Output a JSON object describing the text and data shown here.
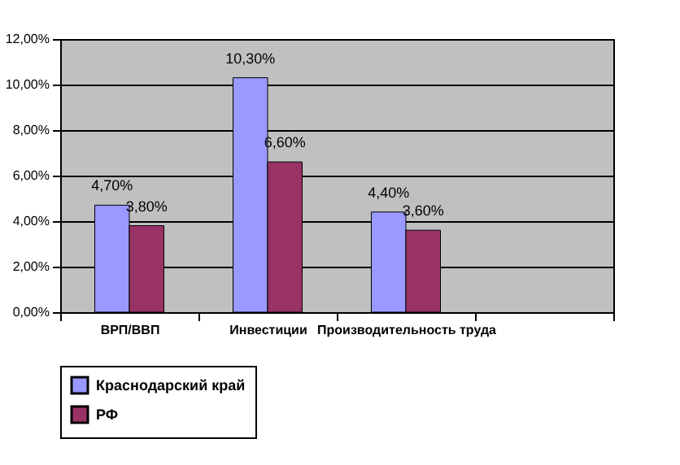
{
  "chart_data": {
    "type": "bar",
    "categories": [
      "ВРП/ВВП",
      "Инвестиции",
      "Производительность труда",
      null
    ],
    "series": [
      {
        "name": "Краснодарский край",
        "color": "#9999ff",
        "values": [
          4.7,
          10.3,
          4.4,
          null
        ],
        "value_labels": [
          "4,70%",
          "10,30%",
          "4,40%",
          null
        ]
      },
      {
        "name": "РФ",
        "color": "#993366",
        "values": [
          3.8,
          6.6,
          3.6,
          null
        ],
        "value_labels": [
          "3,80%",
          "6,60%",
          "3,60%",
          null
        ]
      }
    ],
    "ylim": [
      0,
      12
    ],
    "yticks": [
      {
        "value": 0,
        "label": "0,00%"
      },
      {
        "value": 2,
        "label": "2,00%"
      },
      {
        "value": 4,
        "label": "4,00%"
      },
      {
        "value": 6,
        "label": "6,00%"
      },
      {
        "value": 8,
        "label": "8,00%"
      },
      {
        "value": 10,
        "label": "10,00%"
      },
      {
        "value": 12,
        "label": "12,00%"
      }
    ],
    "grid": "y",
    "legend": "bottom left"
  }
}
